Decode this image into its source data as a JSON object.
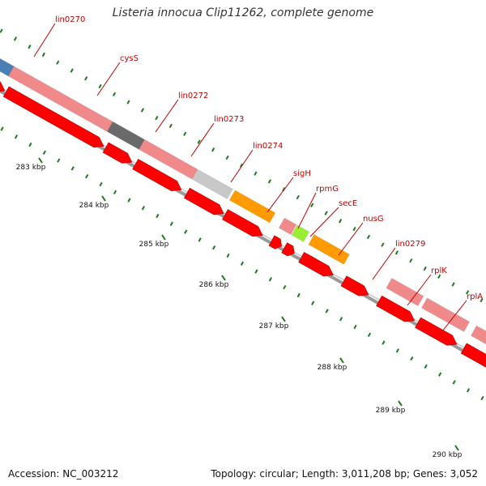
{
  "title": "Listeria innocua Clip11262, complete genome",
  "footer": {
    "accession": "Accession: NC_003212",
    "topology": "Topology: circular; Length: 3,011,208 bp; Genes: 3,052"
  },
  "tracks": {
    "colors": {
      "blue": "#4a7fb5",
      "pink": "#f08a8a",
      "darkgray": "#6a6a6a",
      "lightgray": "#c8c8c8",
      "orange": "#ff9a00",
      "green": "#99ee33",
      "red": "#ff0000",
      "backbone": "#777777",
      "tick": "#1a7a1a",
      "label": "#c00000"
    }
  },
  "features": [
    {
      "name": "lin0270",
      "color": "blue"
    },
    {
      "name": "cysS",
      "color": "pink"
    },
    {
      "name": "lin0272",
      "color": "darkgray"
    },
    {
      "name": "lin0273",
      "color": "pink"
    },
    {
      "name": "lin0274",
      "color": "lightgray"
    },
    {
      "name": "sigH",
      "color": "orange"
    },
    {
      "name": "rpmG",
      "color": "pink"
    },
    {
      "name": "secE",
      "color": "green"
    },
    {
      "name": "nusG",
      "color": "orange"
    },
    {
      "name": "lin0279",
      "color": "pink"
    },
    {
      "name": "rplK",
      "color": "pink"
    },
    {
      "name": "rplA",
      "color": "pink"
    }
  ],
  "kbp_labels": [
    "283 kbp",
    "284 kbp",
    "285 kbp",
    "286 kbp",
    "287 kbp",
    "288 kbp",
    "289 kbp",
    "290 kbp"
  ]
}
